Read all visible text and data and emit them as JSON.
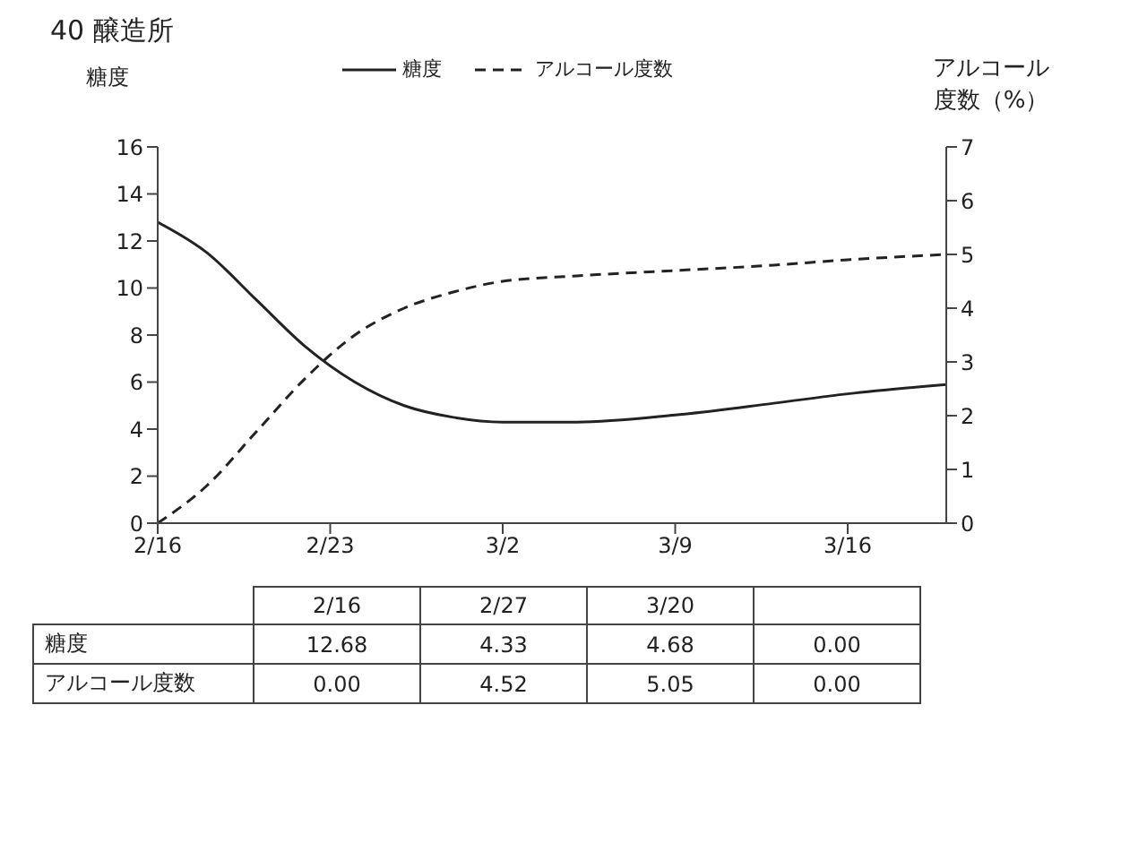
{
  "chart_data": {
    "type": "line",
    "title": "40 醸造所",
    "ylabel": "糖度",
    "y2label": "アルコール度数（%）",
    "x": [
      "--02-16",
      "--02-18",
      "--02-20",
      "--02-22",
      "--02-24",
      "--02-26",
      "--02-28",
      "--03-02",
      "--03-05",
      "--03-09",
      "--03-13",
      "--03-16",
      "--03-20"
    ],
    "series": [
      {
        "name": "糖度",
        "color": "#222222",
        "line_style": "solid",
        "values": [
          12.8,
          11.5,
          9.5,
          7.5,
          6.0,
          5.0,
          4.5,
          4.3,
          4.3,
          4.6,
          5.1,
          5.5,
          5.9
        ]
      },
      {
        "name": "アルコール度数",
        "color": "#222222",
        "line_style": "dashed",
        "axis": "y2",
        "values": [
          0,
          0.7,
          1.7,
          2.7,
          3.5,
          4.0,
          4.3,
          4.5,
          4.6,
          4.7,
          4.8,
          4.9,
          5.0
        ]
      }
    ],
    "xlim": [
      "--02-16",
      "--03-20"
    ],
    "xticks": [
      {
        "value": "--02-16",
        "label": "2/16"
      },
      {
        "value": "--02-23",
        "label": "2/23"
      },
      {
        "value": "--03-02",
        "label": "3/2"
      },
      {
        "value": "--03-09",
        "label": "3/9"
      },
      {
        "value": "--03-16",
        "label": "3/16"
      }
    ],
    "ylim": [
      0,
      16
    ],
    "yticks": [
      0,
      2,
      4,
      6,
      8,
      10,
      12,
      14,
      16
    ],
    "y2lim": [
      0,
      7
    ],
    "y2ticks": [
      0,
      1,
      2,
      3,
      4,
      5,
      6,
      7
    ],
    "legend": "top",
    "marker": "none",
    "annotations": [
      "2/16",
      "2/27",
      "3/20",
      "糖度",
      "12.68",
      "4.33",
      "4.68",
      "0.00",
      "アルコール度数",
      "0.00",
      "4.52",
      "5.05",
      "0.00"
    ]
  }
}
